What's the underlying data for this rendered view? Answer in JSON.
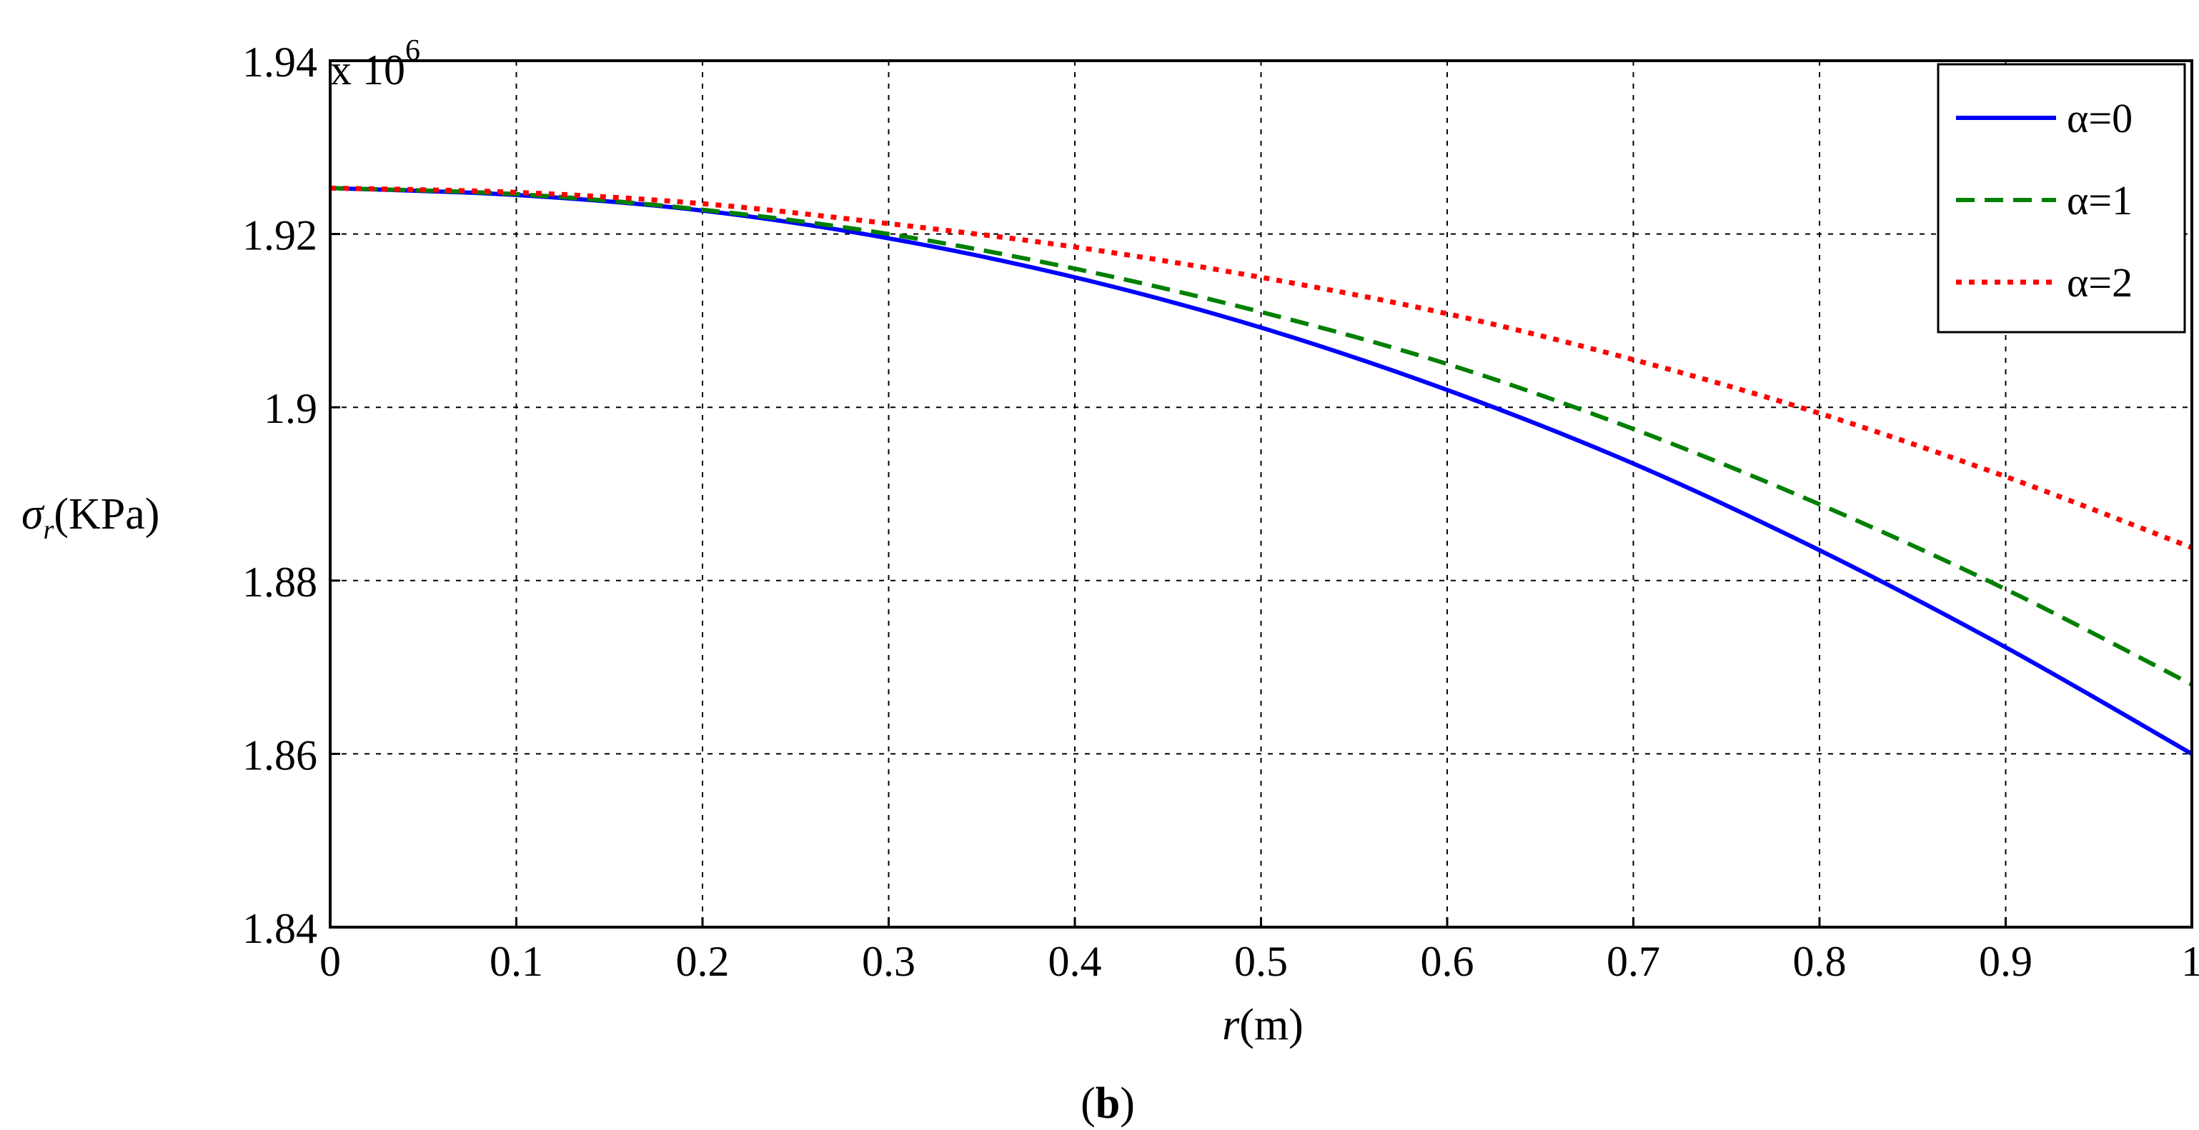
{
  "chart_data": {
    "type": "line",
    "title": "",
    "caption": {
      "open": "(",
      "letter": "b",
      "close": ")"
    },
    "xlabel": {
      "symbol": "r",
      "unit": "(m)"
    },
    "ylabel": {
      "symbol": "σ",
      "subscript": "r",
      "unit": "(KPa)"
    },
    "y_multiplier": {
      "base": "x 10",
      "exponent": "6"
    },
    "xlim": [
      0,
      1
    ],
    "ylim": [
      1.84,
      1.94
    ],
    "grid": true,
    "x_ticks": [
      0,
      0.1,
      0.2,
      0.3,
      0.4,
      0.5,
      0.6,
      0.7,
      0.8,
      0.9,
      1
    ],
    "x_tick_labels": [
      "0",
      "0.1",
      "0.2",
      "0.3",
      "0.4",
      "0.5",
      "0.6",
      "0.7",
      "0.8",
      "0.9",
      "1"
    ],
    "y_ticks": [
      1.84,
      1.86,
      1.88,
      1.9,
      1.92,
      1.94
    ],
    "y_tick_labels": [
      "1.84",
      "1.86",
      "1.88",
      "1.9",
      "1.92",
      "1.94"
    ],
    "legend_position": "top-right",
    "x": [
      0,
      0.1,
      0.2,
      0.3,
      0.4,
      0.5,
      0.6,
      0.7,
      0.8,
      0.9,
      1.0
    ],
    "series": [
      {
        "name": "α=0",
        "color": "#0000ff",
        "style": "solid",
        "values": [
          1.9253,
          1.9245,
          1.9227,
          1.9195,
          1.915,
          1.9092,
          1.902,
          1.8935,
          1.8835,
          1.8723,
          1.86
        ]
      },
      {
        "name": "α=1",
        "color": "#008000",
        "style": "dashed",
        "values": [
          1.9253,
          1.9246,
          1.9228,
          1.92,
          1.916,
          1.911,
          1.905,
          1.8975,
          1.8888,
          1.879,
          1.868
        ]
      },
      {
        "name": "α=2",
        "color": "#ff0000",
        "style": "dotted",
        "values": [
          1.9253,
          1.9248,
          1.9235,
          1.9212,
          1.9185,
          1.915,
          1.9108,
          1.9055,
          1.8993,
          1.892,
          1.8838
        ]
      }
    ]
  }
}
